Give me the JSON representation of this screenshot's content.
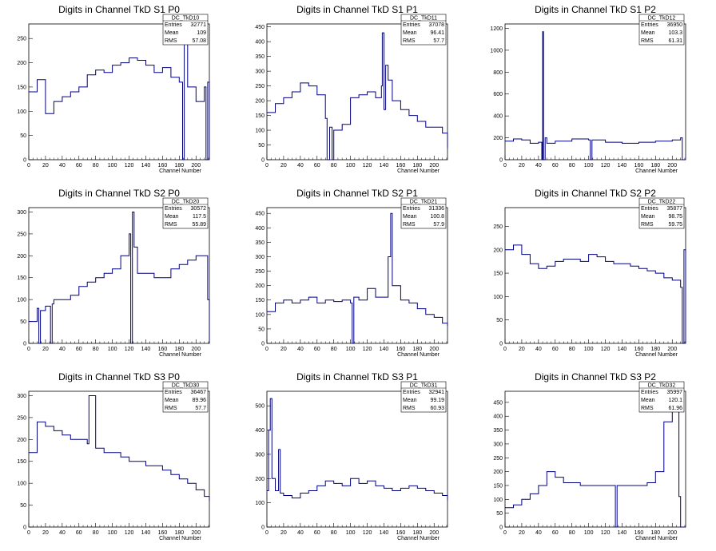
{
  "chart_data": [
    {
      "type": "line",
      "title": "Digits in Channel TkD S1 P0",
      "xlabel": "Channel Number",
      "xlim": [
        0,
        216
      ],
      "ylim": [
        0,
        280
      ],
      "xticks": [
        0,
        20,
        40,
        60,
        80,
        100,
        120,
        140,
        160,
        180,
        200
      ],
      "yticks": [
        0,
        50,
        100,
        150,
        200,
        250
      ],
      "stats": {
        "name": "DC_TkD10",
        "rows": [
          [
            "Entries",
            "32771"
          ],
          [
            "Mean",
            "109"
          ],
          [
            "RMS",
            "57.08"
          ]
        ]
      },
      "x": [
        0,
        10,
        20,
        30,
        40,
        50,
        60,
        70,
        80,
        90,
        100,
        110,
        120,
        130,
        140,
        150,
        160,
        170,
        180,
        184,
        186,
        190,
        200,
        210,
        212,
        214,
        216
      ],
      "series": [
        {
          "values": [
            140,
            165,
            95,
            120,
            130,
            140,
            150,
            175,
            185,
            180,
            195,
            200,
            210,
            205,
            195,
            180,
            190,
            170,
            160,
            0,
            240,
            150,
            120,
            150,
            0,
            160,
            0
          ]
        }
      ]
    },
    {
      "type": "line",
      "title": "Digits in Channel TkD S1 P1",
      "xlabel": "Channel Number",
      "xlim": [
        0,
        216
      ],
      "ylim": [
        0,
        460
      ],
      "xticks": [
        0,
        20,
        40,
        60,
        80,
        100,
        120,
        140,
        160,
        180,
        200
      ],
      "yticks": [
        0,
        50,
        100,
        150,
        200,
        250,
        300,
        350,
        400,
        450
      ],
      "stats": {
        "name": "DC_TkD11",
        "rows": [
          [
            "Entries",
            "37078"
          ],
          [
            "Mean",
            "96.41"
          ],
          [
            "RMS",
            "57.7"
          ]
        ]
      },
      "x": [
        0,
        10,
        20,
        30,
        40,
        50,
        60,
        70,
        72,
        75,
        78,
        80,
        90,
        100,
        110,
        120,
        130,
        137,
        138,
        140,
        142,
        145,
        150,
        160,
        170,
        180,
        190,
        200,
        210,
        216
      ],
      "series": [
        {
          "values": [
            160,
            190,
            210,
            230,
            260,
            250,
            220,
            140,
            0,
            110,
            0,
            100,
            120,
            210,
            220,
            230,
            210,
            250,
            430,
            170,
            320,
            270,
            200,
            170,
            150,
            130,
            110,
            110,
            90,
            40
          ]
        }
      ]
    },
    {
      "type": "line",
      "title": "Digits in Channel TkD S1 P2",
      "xlabel": "Channel Number",
      "xlim": [
        0,
        216
      ],
      "ylim": [
        0,
        1240
      ],
      "xticks": [
        0,
        20,
        40,
        60,
        80,
        100,
        120,
        140,
        160,
        180,
        200
      ],
      "yticks": [
        0,
        200,
        400,
        600,
        800,
        1000,
        1200
      ],
      "stats": {
        "name": "DC_TkD12",
        "rows": [
          [
            "Entries",
            "36950"
          ],
          [
            "Mean",
            "103.3"
          ],
          [
            "RMS",
            "61.31"
          ]
        ]
      },
      "x": [
        0,
        10,
        20,
        30,
        40,
        44,
        45,
        46,
        48,
        50,
        60,
        80,
        100,
        102,
        104,
        120,
        140,
        160,
        180,
        200,
        210,
        212,
        214,
        216
      ],
      "series": [
        {
          "values": [
            170,
            190,
            180,
            150,
            160,
            0,
            1170,
            0,
            200,
            150,
            170,
            190,
            180,
            0,
            180,
            160,
            150,
            160,
            170,
            180,
            200,
            0,
            0,
            0
          ]
        }
      ]
    },
    {
      "type": "line",
      "title": "Digits in Channel TkD S2 P0",
      "xlabel": "Channel Number",
      "xlim": [
        0,
        216
      ],
      "ylim": [
        0,
        310
      ],
      "xticks": [
        0,
        20,
        40,
        60,
        80,
        100,
        120,
        140,
        160,
        180,
        200
      ],
      "yticks": [
        0,
        50,
        100,
        150,
        200,
        250,
        300
      ],
      "stats": {
        "name": "DC_TkD20",
        "rows": [
          [
            "Entries",
            "30572"
          ],
          [
            "Mean",
            "117.5"
          ],
          [
            "RMS",
            "55.89"
          ]
        ]
      },
      "x": [
        0,
        10,
        12,
        14,
        20,
        26,
        28,
        30,
        40,
        50,
        60,
        70,
        80,
        90,
        100,
        110,
        120,
        122,
        124,
        126,
        130,
        140,
        150,
        160,
        170,
        180,
        190,
        200,
        210,
        214,
        216
      ],
      "series": [
        {
          "values": [
            50,
            80,
            0,
            75,
            85,
            0,
            90,
            100,
            100,
            110,
            130,
            140,
            150,
            160,
            170,
            200,
            250,
            0,
            300,
            220,
            160,
            160,
            150,
            150,
            170,
            180,
            190,
            200,
            200,
            100,
            0
          ]
        }
      ]
    },
    {
      "type": "line",
      "title": "Digits in Channel TkD S2 P1",
      "xlabel": "Channel Number",
      "xlim": [
        0,
        216
      ],
      "ylim": [
        0,
        470
      ],
      "xticks": [
        0,
        20,
        40,
        60,
        80,
        100,
        120,
        140,
        160,
        180,
        200
      ],
      "yticks": [
        0,
        50,
        100,
        150,
        200,
        250,
        300,
        350,
        400,
        450
      ],
      "stats": {
        "name": "DC_TkD21",
        "rows": [
          [
            "Entries",
            "31336"
          ],
          [
            "Mean",
            "100.8"
          ],
          [
            "RMS",
            "57.9"
          ]
        ]
      },
      "x": [
        0,
        10,
        20,
        30,
        40,
        50,
        60,
        70,
        80,
        90,
        100,
        102,
        104,
        110,
        120,
        130,
        140,
        145,
        148,
        150,
        160,
        170,
        180,
        190,
        200,
        210,
        216
      ],
      "series": [
        {
          "values": [
            110,
            140,
            150,
            140,
            150,
            160,
            140,
            150,
            145,
            150,
            140,
            0,
            160,
            150,
            190,
            160,
            160,
            300,
            450,
            200,
            150,
            140,
            120,
            100,
            90,
            70,
            60
          ]
        }
      ]
    },
    {
      "type": "line",
      "title": "Digits in Channel TkD S2 P2",
      "xlabel": "Channel Number",
      "xlim": [
        0,
        216
      ],
      "ylim": [
        0,
        290
      ],
      "xticks": [
        0,
        20,
        40,
        60,
        80,
        100,
        120,
        140,
        160,
        180,
        200
      ],
      "yticks": [
        0,
        50,
        100,
        150,
        200,
        250
      ],
      "stats": {
        "name": "DC_TkD22",
        "rows": [
          [
            "Entries",
            "35877"
          ],
          [
            "Mean",
            "98.75"
          ],
          [
            "RMS",
            "59.75"
          ]
        ]
      },
      "x": [
        0,
        10,
        20,
        30,
        40,
        50,
        60,
        70,
        80,
        90,
        100,
        110,
        120,
        130,
        140,
        150,
        160,
        170,
        180,
        190,
        200,
        210,
        212,
        214,
        216
      ],
      "series": [
        {
          "values": [
            200,
            210,
            190,
            170,
            160,
            165,
            175,
            180,
            180,
            175,
            190,
            185,
            175,
            170,
            170,
            165,
            160,
            155,
            150,
            140,
            135,
            120,
            0,
            200,
            0
          ]
        }
      ]
    },
    {
      "type": "line",
      "title": "Digits in Channel TkD S3 P0",
      "xlabel": "Channel Number",
      "xlim": [
        0,
        216
      ],
      "ylim": [
        0,
        310
      ],
      "xticks": [
        0,
        20,
        40,
        60,
        80,
        100,
        120,
        140,
        160,
        180,
        200
      ],
      "yticks": [
        0,
        50,
        100,
        150,
        200,
        250,
        300
      ],
      "stats": {
        "name": "DC_TkD30",
        "rows": [
          [
            "Entries",
            "36467"
          ],
          [
            "Mean",
            "89.96"
          ],
          [
            "RMS",
            "57.7"
          ]
        ]
      },
      "x": [
        0,
        10,
        20,
        30,
        40,
        50,
        60,
        70,
        72,
        80,
        90,
        100,
        110,
        120,
        130,
        140,
        150,
        160,
        170,
        180,
        190,
        200,
        210,
        216
      ],
      "series": [
        {
          "values": [
            170,
            240,
            230,
            220,
            210,
            200,
            200,
            190,
            300,
            180,
            170,
            170,
            160,
            150,
            150,
            140,
            140,
            130,
            120,
            110,
            100,
            85,
            70,
            60
          ]
        }
      ]
    },
    {
      "type": "line",
      "title": "Digits in Channel TkD S3 P1",
      "xlabel": "Channel Number",
      "xlim": [
        0,
        216
      ],
      "ylim": [
        0,
        560
      ],
      "xticks": [
        0,
        20,
        40,
        60,
        80,
        100,
        120,
        140,
        160,
        180,
        200
      ],
      "yticks": [
        0,
        100,
        200,
        300,
        400,
        500
      ],
      "stats": {
        "name": "DC_TkD31",
        "rows": [
          [
            "Entries",
            "32941"
          ],
          [
            "Mean",
            "99.19"
          ],
          [
            "RMS",
            "60.93"
          ]
        ]
      },
      "x": [
        0,
        2,
        4,
        6,
        10,
        14,
        16,
        20,
        30,
        40,
        50,
        60,
        70,
        80,
        90,
        100,
        110,
        120,
        130,
        140,
        150,
        160,
        170,
        180,
        190,
        200,
        210,
        216
      ],
      "series": [
        {
          "values": [
            150,
            400,
            530,
            200,
            150,
            320,
            140,
            130,
            120,
            140,
            150,
            170,
            190,
            180,
            170,
            200,
            180,
            190,
            170,
            160,
            150,
            160,
            170,
            160,
            150,
            140,
            130,
            110
          ]
        }
      ]
    },
    {
      "type": "line",
      "title": "Digits in Channel TkD S3 P2",
      "xlabel": "Channel Number",
      "xlim": [
        0,
        216
      ],
      "ylim": [
        0,
        490
      ],
      "xticks": [
        0,
        20,
        40,
        60,
        80,
        100,
        120,
        140,
        160,
        180,
        200
      ],
      "yticks": [
        0,
        50,
        100,
        150,
        200,
        250,
        300,
        350,
        400,
        450
      ],
      "stats": {
        "name": "DC_TkD32",
        "rows": [
          [
            "Entries",
            "35997"
          ],
          [
            "Mean",
            "120.1"
          ],
          [
            "RMS",
            "61.96"
          ]
        ]
      },
      "x": [
        0,
        10,
        20,
        30,
        40,
        50,
        60,
        70,
        80,
        90,
        100,
        110,
        120,
        130,
        132,
        134,
        140,
        150,
        160,
        170,
        180,
        190,
        200,
        205,
        208,
        210,
        212,
        216
      ],
      "series": [
        {
          "values": [
            70,
            80,
            100,
            120,
            150,
            200,
            180,
            160,
            160,
            150,
            150,
            150,
            150,
            150,
            0,
            150,
            150,
            150,
            150,
            160,
            200,
            380,
            420,
            490,
            110,
            0,
            0,
            0
          ]
        }
      ]
    }
  ]
}
